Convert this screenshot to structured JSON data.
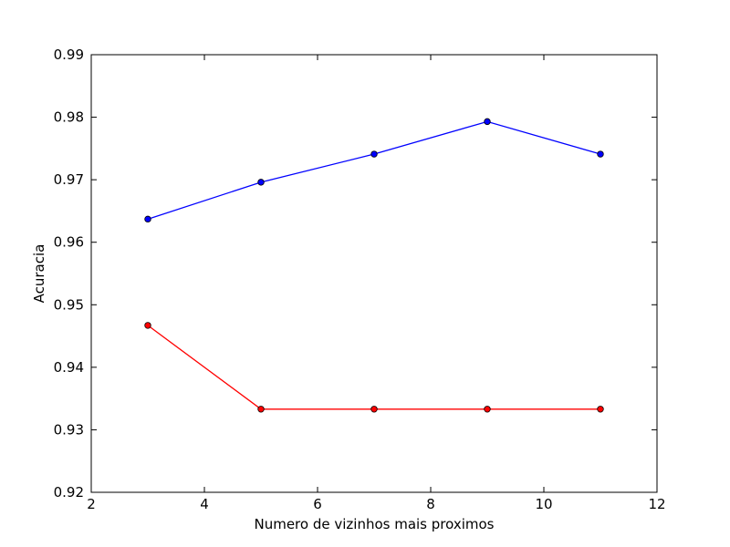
{
  "chart_data": {
    "type": "line",
    "title": "",
    "xlabel": "Numero de vizinhos mais proximos",
    "ylabel": "Acuracia",
    "xlim": [
      2,
      12
    ],
    "ylim": [
      0.92,
      0.99
    ],
    "xticks": [
      2,
      4,
      6,
      8,
      10,
      12
    ],
    "yticks": [
      0.92,
      0.93,
      0.94,
      0.95,
      0.96,
      0.97,
      0.98,
      0.99
    ],
    "xtick_labels": [
      "2",
      "4",
      "6",
      "8",
      "10",
      "12"
    ],
    "ytick_labels": [
      "0.92",
      "0.93",
      "0.94",
      "0.95",
      "0.96",
      "0.97",
      "0.98",
      "0.99"
    ],
    "grid": false,
    "x": [
      3,
      5,
      7,
      9,
      11
    ],
    "series": [
      {
        "values": [
          0.9637,
          0.9696,
          0.9741,
          0.9793,
          0.9741
        ],
        "color": "#0000ff"
      },
      {
        "values": [
          0.9467,
          0.9333,
          0.9333,
          0.9333,
          0.9333
        ],
        "color": "#ff0000"
      }
    ]
  }
}
